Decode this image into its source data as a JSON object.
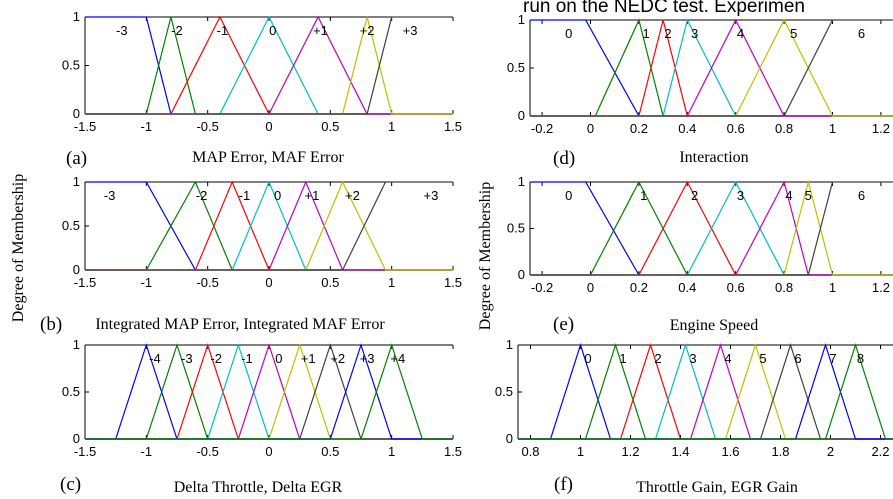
{
  "figure": {
    "top_text": "run on the NEDC test. Experimen",
    "ylabel_left": "Degree of Membership",
    "ylabel_right": "Degree of Membership",
    "colors": [
      "#0000ff",
      "#008000",
      "#ff0000",
      "#00bfbf",
      "#bf00bf",
      "#bfbf00",
      "#404040"
    ]
  },
  "chart_data": [
    {
      "id": "a",
      "type": "line",
      "panel_label": "(a)",
      "xlabel": "MAP Error, MAF Error",
      "xlim": [
        -1.5,
        1.5
      ],
      "ylim": [
        0,
        1
      ],
      "xticks": [
        "-1.5",
        "-1",
        "-0.5",
        "0",
        "0.5",
        "1",
        "1.5"
      ],
      "yticks": [
        "0",
        "0.5",
        "1"
      ],
      "series": [
        {
          "name": "-3",
          "x": [
            -1.5,
            -1,
            -0.8
          ],
          "y": [
            1,
            1,
            0
          ]
        },
        {
          "name": "-2",
          "x": [
            -1,
            -0.8,
            -0.6
          ],
          "y": [
            0,
            1,
            0
          ]
        },
        {
          "name": "-1",
          "x": [
            -0.8,
            -0.4,
            0
          ],
          "y": [
            0,
            1,
            0
          ]
        },
        {
          "name": "0",
          "x": [
            -0.4,
            0,
            0.4
          ],
          "y": [
            0,
            1,
            0
          ]
        },
        {
          "name": "+1",
          "x": [
            0,
            0.4,
            0.8
          ],
          "y": [
            0,
            1,
            0
          ]
        },
        {
          "name": "+2",
          "x": [
            0.6,
            0.8,
            1
          ],
          "y": [
            0,
            1,
            0
          ]
        },
        {
          "name": "+3",
          "x": [
            0.8,
            1,
            1.5
          ],
          "y": [
            0,
            1,
            1
          ]
        }
      ],
      "label_x": [
        -1.2,
        -0.75,
        -0.38,
        0.03,
        0.42,
        0.8,
        1.15
      ]
    },
    {
      "id": "b",
      "type": "line",
      "panel_label": "(b)",
      "xlabel": "Integrated MAP Error, Integrated MAF Error",
      "xlim": [
        -1.5,
        1.5
      ],
      "ylim": [
        0,
        1
      ],
      "xticks": [
        "-1.5",
        "-1",
        "-0.5",
        "0",
        "0.5",
        "1",
        "1.5"
      ],
      "yticks": [
        "0",
        "0.5",
        "1"
      ],
      "series": [
        {
          "name": "-3",
          "x": [
            -1.5,
            -1,
            -0.6
          ],
          "y": [
            1,
            1,
            0
          ]
        },
        {
          "name": "-2",
          "x": [
            -1,
            -0.6,
            -0.3
          ],
          "y": [
            0,
            1,
            0
          ]
        },
        {
          "name": "-1",
          "x": [
            -0.6,
            -0.3,
            0
          ],
          "y": [
            0,
            1,
            0
          ]
        },
        {
          "name": "0",
          "x": [
            -0.3,
            0,
            0.3
          ],
          "y": [
            0,
            1,
            0
          ]
        },
        {
          "name": "+1",
          "x": [
            0,
            0.3,
            0.6
          ],
          "y": [
            0,
            1,
            0
          ]
        },
        {
          "name": "+2",
          "x": [
            0.3,
            0.6,
            0.95
          ],
          "y": [
            0,
            1,
            0
          ]
        },
        {
          "name": "+3",
          "x": [
            0.6,
            0.95,
            1.5
          ],
          "y": [
            0,
            1,
            1
          ]
        }
      ],
      "label_x": [
        -1.3,
        -0.55,
        -0.2,
        0.07,
        0.35,
        0.68,
        1.32
      ]
    },
    {
      "id": "c",
      "type": "line",
      "panel_label": "(c)",
      "xlabel": "Delta Throttle, Delta EGR",
      "xlim": [
        -1.5,
        1.5
      ],
      "ylim": [
        0,
        1
      ],
      "xticks": [
        "-1.5",
        "-1",
        "-0.5",
        "0",
        "0.5",
        "1",
        "1.5"
      ],
      "yticks": [
        "0",
        "0.5",
        "1"
      ],
      "series": [
        {
          "name": "-4",
          "x": [
            -1.25,
            -1,
            -0.75
          ],
          "y": [
            0,
            1,
            0
          ]
        },
        {
          "name": "-3",
          "x": [
            -1,
            -0.75,
            -0.5
          ],
          "y": [
            0,
            1,
            0
          ]
        },
        {
          "name": "-2",
          "x": [
            -0.75,
            -0.5,
            -0.25
          ],
          "y": [
            0,
            1,
            0
          ]
        },
        {
          "name": "-1",
          "x": [
            -0.5,
            -0.25,
            0
          ],
          "y": [
            0,
            1,
            0
          ]
        },
        {
          "name": "0",
          "x": [
            -0.25,
            0,
            0.25
          ],
          "y": [
            0,
            1,
            0
          ]
        },
        {
          "name": "+1",
          "x": [
            0,
            0.25,
            0.5
          ],
          "y": [
            0,
            1,
            0
          ]
        },
        {
          "name": "+2",
          "x": [
            0.25,
            0.5,
            0.75
          ],
          "y": [
            0,
            1,
            0
          ]
        },
        {
          "name": "+3",
          "x": [
            0.5,
            0.75,
            1
          ],
          "y": [
            0,
            1,
            0
          ]
        },
        {
          "name": "+4",
          "x": [
            0.75,
            1,
            1.25
          ],
          "y": [
            0,
            1,
            0
          ]
        }
      ],
      "label_x": [
        -0.93,
        -0.67,
        -0.43,
        -0.18,
        0.08,
        0.32,
        0.56,
        0.8,
        1.05
      ]
    },
    {
      "id": "d",
      "type": "line",
      "panel_label": "(d)",
      "xlabel": "Interaction",
      "xlim": [
        -0.25,
        1.25
      ],
      "ylim": [
        0,
        1
      ],
      "xticks": [
        "-0.2",
        "0",
        "0.2",
        "0.4",
        "0.6",
        "0.8",
        "1",
        "1.2"
      ],
      "xtick_values": [
        -0.2,
        0,
        0.2,
        0.4,
        0.6,
        0.8,
        1,
        1.2
      ],
      "yticks": [
        "0",
        "0.5",
        "1"
      ],
      "series": [
        {
          "name": "0",
          "x": [
            -0.25,
            -0.02,
            0.2
          ],
          "y": [
            1,
            1,
            0
          ]
        },
        {
          "name": "1",
          "x": [
            0.02,
            0.2,
            0.3
          ],
          "y": [
            0,
            1,
            0
          ]
        },
        {
          "name": "2",
          "x": [
            0.2,
            0.3,
            0.4
          ],
          "y": [
            0,
            1,
            0
          ]
        },
        {
          "name": "3",
          "x": [
            0.3,
            0.4,
            0.6
          ],
          "y": [
            0,
            1,
            0
          ]
        },
        {
          "name": "4",
          "x": [
            0.4,
            0.6,
            0.8
          ],
          "y": [
            0,
            1,
            0
          ]
        },
        {
          "name": "5",
          "x": [
            0.6,
            0.8,
            1
          ],
          "y": [
            0,
            1,
            0
          ]
        },
        {
          "name": "6",
          "x": [
            0.8,
            1,
            1.25
          ],
          "y": [
            0,
            1,
            1
          ]
        }
      ],
      "label_x": [
        -0.09,
        0.23,
        0.32,
        0.43,
        0.62,
        0.84,
        1.12
      ]
    },
    {
      "id": "e",
      "type": "line",
      "panel_label": "(e)",
      "xlabel": "Engine Speed",
      "xlim": [
        -0.25,
        1.25
      ],
      "ylim": [
        0,
        1
      ],
      "xticks": [
        "-0.2",
        "0",
        "0.2",
        "0.4",
        "0.6",
        "0.8",
        "1",
        "1.2"
      ],
      "xtick_values": [
        -0.2,
        0,
        0.2,
        0.4,
        0.6,
        0.8,
        1,
        1.2
      ],
      "yticks": [
        "0",
        "0.5",
        "1"
      ],
      "series": [
        {
          "name": "0",
          "x": [
            -0.25,
            -0.02,
            0.2
          ],
          "y": [
            1,
            1,
            0
          ]
        },
        {
          "name": "1",
          "x": [
            0,
            0.2,
            0.4
          ],
          "y": [
            0,
            1,
            0
          ]
        },
        {
          "name": "2",
          "x": [
            0.2,
            0.4,
            0.6
          ],
          "y": [
            0,
            1,
            0
          ]
        },
        {
          "name": "3",
          "x": [
            0.4,
            0.6,
            0.8
          ],
          "y": [
            0,
            1,
            0
          ]
        },
        {
          "name": "4",
          "x": [
            0.6,
            0.8,
            0.9
          ],
          "y": [
            0,
            1,
            0
          ]
        },
        {
          "name": "5",
          "x": [
            0.8,
            0.9,
            1
          ],
          "y": [
            0,
            1,
            0
          ]
        },
        {
          "name": "6",
          "x": [
            0.9,
            1,
            1.25
          ],
          "y": [
            0,
            1,
            1
          ]
        }
      ],
      "label_x": [
        -0.09,
        0.22,
        0.43,
        0.62,
        0.82,
        0.9,
        1.12
      ]
    },
    {
      "id": "f",
      "type": "line",
      "panel_label": "(f)",
      "xlabel": "Throttle Gain, EGR Gain",
      "xlim": [
        0.75,
        2.25
      ],
      "ylim": [
        0,
        1
      ],
      "xticks": [
        "0.8",
        "1",
        "1.2",
        "1.4",
        "1.6",
        "1.8",
        "2",
        "2.2"
      ],
      "xtick_values": [
        0.8,
        1,
        1.2,
        1.4,
        1.6,
        1.8,
        2,
        2.2
      ],
      "yticks": [
        "0",
        "0.5",
        "1"
      ],
      "series": [
        {
          "name": "0",
          "x": [
            0.88,
            1.0,
            1.12
          ],
          "y": [
            0,
            1,
            0
          ]
        },
        {
          "name": "1",
          "x": [
            1.02,
            1.14,
            1.26
          ],
          "y": [
            0,
            1,
            0
          ]
        },
        {
          "name": "2",
          "x": [
            1.16,
            1.28,
            1.4
          ],
          "y": [
            0,
            1,
            0
          ]
        },
        {
          "name": "3",
          "x": [
            1.3,
            1.42,
            1.54
          ],
          "y": [
            0,
            1,
            0
          ]
        },
        {
          "name": "4",
          "x": [
            1.44,
            1.56,
            1.68
          ],
          "y": [
            0,
            1,
            0
          ]
        },
        {
          "name": "5",
          "x": [
            1.58,
            1.7,
            1.82
          ],
          "y": [
            0,
            1,
            0
          ]
        },
        {
          "name": "6",
          "x": [
            1.72,
            1.84,
            1.96
          ],
          "y": [
            0,
            1,
            0
          ]
        },
        {
          "name": "7",
          "x": [
            1.86,
            1.98,
            2.1
          ],
          "y": [
            0,
            1,
            0
          ]
        },
        {
          "name": "8",
          "x": [
            1.98,
            2.1,
            2.22
          ],
          "y": [
            0,
            1,
            0
          ]
        }
      ],
      "label_x": [
        1.03,
        1.17,
        1.31,
        1.45,
        1.59,
        1.73,
        1.87,
        2.01,
        2.12
      ]
    }
  ]
}
